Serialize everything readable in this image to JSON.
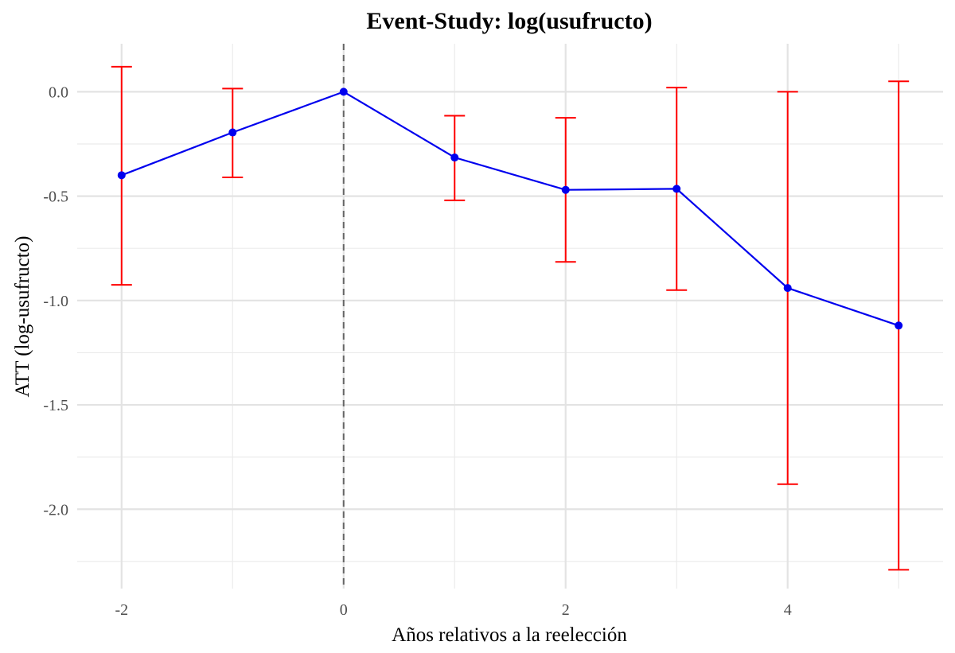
{
  "chart_data": {
    "type": "line",
    "title": "Event-Study: log(usufructo)",
    "xlabel": "Años relativos a la reelección",
    "ylabel": "ATT (log-usufructo)",
    "xlim": [
      -2.4,
      5.4
    ],
    "ylim": [
      -2.38,
      0.23
    ],
    "x_ticks": [
      -2,
      0,
      2,
      4
    ],
    "x_tick_labels": [
      "-2",
      "0",
      "2",
      "4"
    ],
    "x_minor_ticks": [
      -1,
      1,
      3,
      5
    ],
    "y_ticks": [
      0.0,
      -0.5,
      -1.0,
      -1.5,
      -2.0
    ],
    "y_tick_labels": [
      "0.0",
      "-0.5",
      "-1.0",
      "-1.5",
      "-2.0"
    ],
    "y_minor_ticks": [
      -0.25,
      -0.75,
      -1.25,
      -1.75,
      -2.25
    ],
    "grid": true,
    "reference_line": {
      "x": 0,
      "style": "dashed",
      "color": "#666666"
    },
    "series": [
      {
        "line_color": "#0000ee",
        "point_color": "#0000ee",
        "errorbar_color": "#ff0000",
        "x": [
          -2,
          -1,
          0,
          1,
          2,
          3,
          4,
          5
        ],
        "y": [
          -0.4,
          -0.195,
          0.0,
          -0.315,
          -0.47,
          -0.465,
          -0.94,
          -1.12
        ],
        "ci_low": [
          -0.925,
          -0.41,
          null,
          -0.52,
          -0.815,
          -0.95,
          -1.88,
          -2.29
        ],
        "ci_high": [
          0.12,
          0.015,
          null,
          -0.115,
          -0.125,
          0.02,
          0.0,
          0.05
        ]
      }
    ]
  }
}
